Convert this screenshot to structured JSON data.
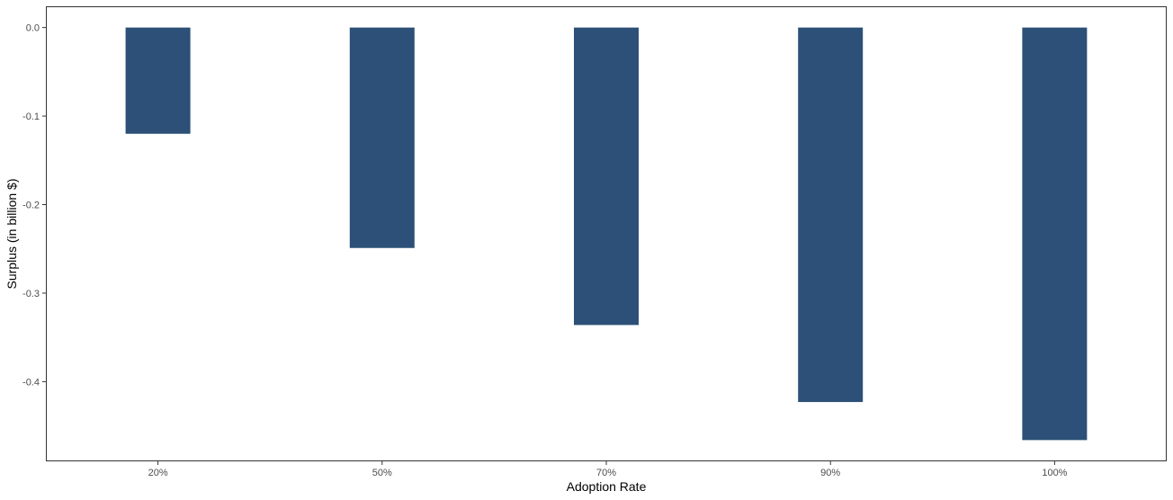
{
  "chart_data": {
    "type": "bar",
    "title": "",
    "xlabel": "Adoption Rate",
    "ylabel": "Surplus (in billion $)",
    "categories": [
      "20%",
      "50%",
      "70%",
      "90%",
      "100%"
    ],
    "values": [
      -0.12,
      -0.249,
      -0.336,
      -0.423,
      -0.466
    ],
    "ylim": [
      -0.49,
      0.024
    ],
    "yticks": [
      0.0,
      -0.1,
      -0.2,
      -0.3,
      -0.4
    ],
    "ytick_labels": [
      "0.0",
      "-0.1",
      "-0.2",
      "-0.3",
      "-0.4"
    ],
    "grid": false,
    "legend": "none",
    "bar_color": "#2c5077",
    "panel_border_color": "#333333"
  }
}
